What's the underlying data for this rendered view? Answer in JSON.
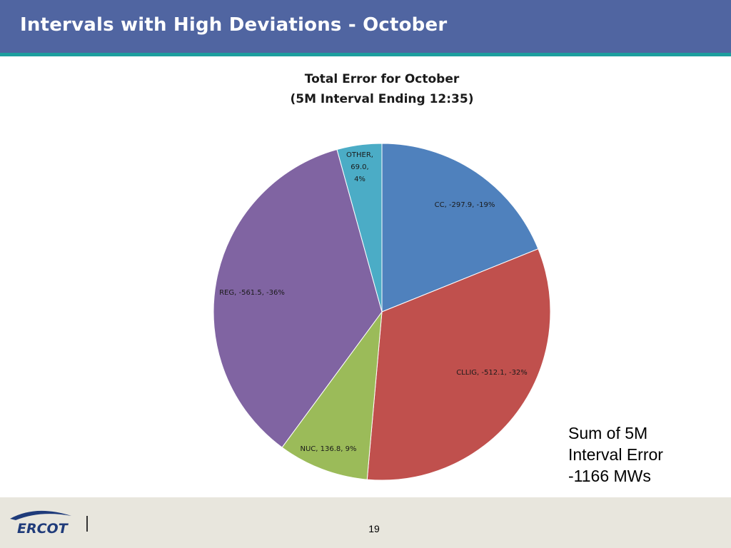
{
  "header": {
    "title": "Intervals with High Deviations - October"
  },
  "chart_data": {
    "type": "pie",
    "title_lines": [
      "Total Error for October",
      "(5M Interval Ending 12:35)"
    ],
    "slices": [
      {
        "name": "CC",
        "value": -297.9,
        "percent": "-19%",
        "share": 0.189,
        "color": "#4f81bd",
        "label_lines": [
          "CC, -297.9, -19%"
        ]
      },
      {
        "name": "CLLIG",
        "value": -512.1,
        "percent": "-32%",
        "share": 0.325,
        "color": "#c0504d",
        "label_lines": [
          "CLLIG, -512.1, -32%"
        ]
      },
      {
        "name": "NUC",
        "value": 136.8,
        "percent": "9%",
        "share": 0.087,
        "color": "#9bbb59",
        "label_lines": [
          "NUC, 136.8, 9%"
        ]
      },
      {
        "name": "REG",
        "value": -561.5,
        "percent": "-36%",
        "share": 0.356,
        "color": "#8064a2",
        "label_lines": [
          "REG, -561.5, -36%"
        ]
      },
      {
        "name": "OTHER",
        "value": 69.0,
        "percent": "4%",
        "share": 0.043,
        "color": "#4bacc6",
        "label_lines": [
          "OTHER,",
          "69.0,",
          "4%"
        ]
      }
    ]
  },
  "note": {
    "line1": "Sum of 5M",
    "line2": "Interval Error",
    "line3": "-1166 MWs"
  },
  "footer": {
    "logo_text": "ERCOT",
    "page_number": "19"
  },
  "colors": {
    "header_bg": "#5065a1",
    "header_rule": "#1d9e9e",
    "footer_bg": "#e8e6dd",
    "logo_blue": "#1f3b7a"
  }
}
